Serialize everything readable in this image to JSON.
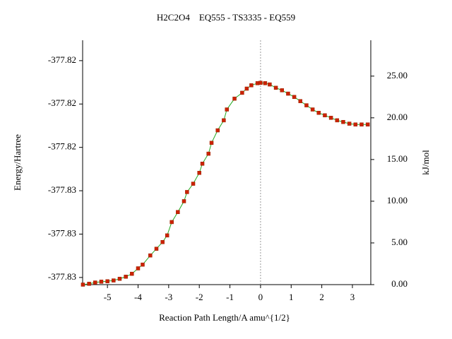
{
  "chart_data": {
    "type": "line",
    "title": "H2C2O4    EQ555 - TS3335 - EQ559",
    "x_label": "Reaction Path Length/A amu^{1/2}",
    "y_label": "Energy/Hartree",
    "y2_label": "kJ/mol",
    "xlim": [
      -5.81,
      3.6
    ],
    "xticks": [
      -5,
      -4,
      -3,
      -2,
      -1,
      0,
      1,
      2,
      3
    ],
    "ylim": [
      -377.83033,
      -377.81906
    ],
    "yticks": [
      {
        "value": -377.83,
        "label": "-377.83"
      },
      {
        "value": -377.828,
        "label": "-377.83"
      },
      {
        "value": -377.826,
        "label": "-377.83"
      },
      {
        "value": -377.824,
        "label": "-377.82"
      },
      {
        "value": -377.822,
        "label": "-377.82"
      },
      {
        "value": -377.82,
        "label": "-377.82"
      }
    ],
    "y2lim": [
      0,
      29.3
    ],
    "y2ticks": [
      {
        "value": 0,
        "label": "0.00"
      },
      {
        "value": 5,
        "label": "5.00"
      },
      {
        "value": 10,
        "label": "10.00"
      },
      {
        "value": 15,
        "label": "15.00"
      },
      {
        "value": 20,
        "label": "20.00"
      },
      {
        "value": 25,
        "label": "25.00"
      }
    ],
    "vline_x": 0,
    "x": [
      -5.8,
      -5.6,
      -5.4,
      -5.2,
      -5.0,
      -4.8,
      -4.6,
      -4.4,
      -4.2,
      -4.0,
      -3.85,
      -3.6,
      -3.4,
      -3.2,
      -3.05,
      -2.9,
      -2.7,
      -2.5,
      -2.4,
      -2.2,
      -2.0,
      -1.9,
      -1.7,
      -1.6,
      -1.4,
      -1.2,
      -1.1,
      -0.85,
      -0.6,
      -0.45,
      -0.3,
      -0.1,
      0.0,
      0.15,
      0.3,
      0.5,
      0.7,
      0.9,
      1.1,
      1.3,
      1.5,
      1.7,
      1.9,
      2.1,
      2.3,
      2.5,
      2.7,
      2.9,
      3.1,
      3.3,
      3.5
    ],
    "series": [
      {
        "axis": "y2",
        "color": "#cc2200",
        "line_color": "#22aa22",
        "values": [
          0.0,
          0.1,
          0.25,
          0.35,
          0.4,
          0.5,
          0.7,
          0.95,
          1.3,
          1.95,
          2.4,
          3.5,
          4.3,
          5.1,
          5.9,
          7.5,
          8.7,
          10.0,
          11.1,
          12.1,
          13.4,
          14.5,
          15.7,
          17.0,
          18.5,
          19.7,
          21.0,
          22.3,
          23.0,
          23.5,
          23.9,
          24.15,
          24.2,
          24.15,
          24.0,
          23.6,
          23.3,
          22.9,
          22.5,
          22.0,
          21.5,
          21.0,
          20.6,
          20.3,
          20.0,
          19.7,
          19.5,
          19.3,
          19.2,
          19.2,
          19.2
        ]
      }
    ]
  }
}
